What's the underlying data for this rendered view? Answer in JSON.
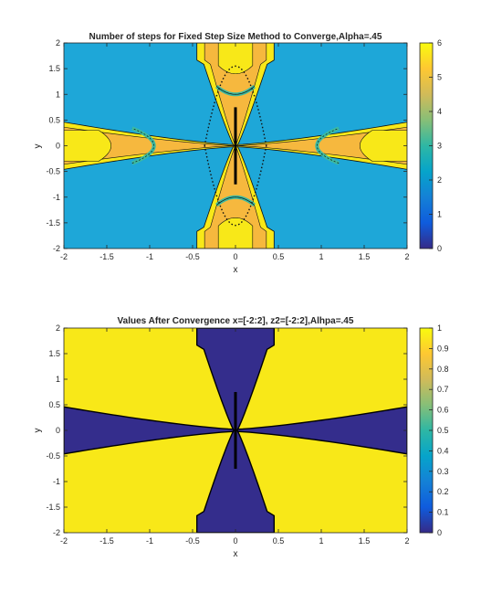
{
  "chart_data": [
    {
      "type": "heatmap",
      "title": "Number of steps for Fixed Step Size Method to Converge,Alpha=.45",
      "xlabel": "x",
      "ylabel": "y",
      "xlim": [
        -2,
        2
      ],
      "ylim": [
        -2,
        2
      ],
      "xticks": [
        "-2",
        "-1.5",
        "-1",
        "-0.5",
        "0",
        "0.5",
        "1",
        "1.5",
        "2"
      ],
      "yticks": [
        "2",
        "1.5",
        "1",
        "0.5",
        "0",
        "-0.5",
        "-1",
        "-1.5",
        "-2"
      ],
      "colorbar": {
        "min": 0,
        "max": 6,
        "ticks": [
          "6",
          "5",
          "4",
          "3",
          "2",
          "1",
          "0"
        ]
      },
      "regions": {
        "background_level": 2,
        "band_level": 6,
        "inner_level": 5,
        "ring_level": 3
      },
      "colors": {
        "background": "#1ea7d8",
        "band": "#f8e818",
        "inner": "#f6b83e",
        "ring": "#3cbaa1"
      }
    },
    {
      "type": "heatmap",
      "title": "Values After Convergence x=[-2:2], z2=[-2:2],Alhpa=.45",
      "xlabel": "x",
      "ylabel": "y",
      "xlim": [
        -2,
        2
      ],
      "ylim": [
        -2,
        2
      ],
      "xticks": [
        "-2",
        "-1.5",
        "-1",
        "-0.5",
        "0",
        "0.5",
        "1",
        "1.5",
        "2"
      ],
      "yticks": [
        "2",
        "1.5",
        "1",
        "0.5",
        "0",
        "-0.5",
        "-1",
        "-1.5",
        "-2"
      ],
      "colorbar": {
        "min": 0,
        "max": 1,
        "ticks": [
          "1",
          "0.9",
          "0.8",
          "0.7",
          "0.6",
          "0.5",
          "0.4",
          "0.3",
          "0.2",
          "0.1",
          "0"
        ]
      },
      "regions": {
        "background_level": 1,
        "band_level": 0
      },
      "colors": {
        "background": "#f8e818",
        "band": "#342d8c"
      }
    }
  ]
}
